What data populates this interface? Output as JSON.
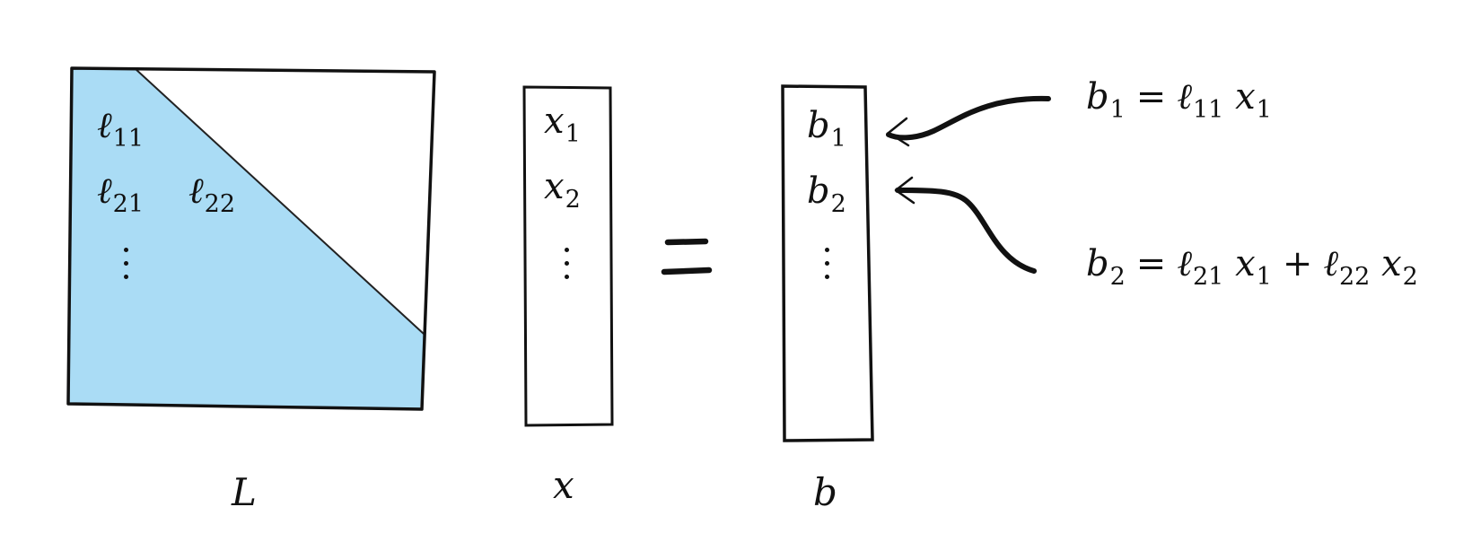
{
  "matrix_L": {
    "entries": [
      {
        "base": "ℓ",
        "sub": "11"
      },
      {
        "base": "ℓ",
        "sub": "21"
      },
      {
        "base": "ℓ",
        "sub": "22"
      }
    ],
    "label": "L",
    "fill_color": "#aadcf5"
  },
  "vector_x": {
    "entries": [
      {
        "base": "x",
        "sub": "1"
      },
      {
        "base": "x",
        "sub": "2"
      }
    ],
    "label": "x"
  },
  "equals_sign": "=",
  "vector_b": {
    "entries": [
      {
        "base": "b",
        "sub": "1"
      },
      {
        "base": "b",
        "sub": "2"
      }
    ],
    "label": "b"
  },
  "equations": {
    "eq1": {
      "lhs": {
        "base": "b",
        "sub": "1"
      },
      "eq": "=",
      "t1": {
        "base": "ℓ",
        "sub": "11"
      },
      "t1x": {
        "base": "x",
        "sub": "1"
      }
    },
    "eq2": {
      "lhs": {
        "base": "b",
        "sub": "2"
      },
      "eq": "=",
      "t1": {
        "base": "ℓ",
        "sub": "21"
      },
      "t1x": {
        "base": "x",
        "sub": "1"
      },
      "plus": "+",
      "t2": {
        "base": "ℓ",
        "sub": "22"
      },
      "t2x": {
        "base": "x",
        "sub": "2"
      }
    }
  }
}
